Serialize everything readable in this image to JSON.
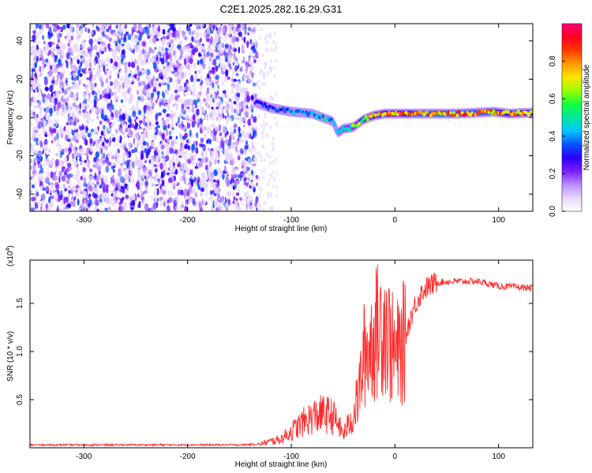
{
  "figure": {
    "title": "C2E1.2025.282.16.29.G31"
  },
  "chart_data": [
    {
      "type": "heatmap",
      "title": "C2E1.2025.282.16.29.G31",
      "xlabel": "Height of straight line (km)",
      "ylabel": "Frequency (Hz)",
      "xlim": [
        -352,
        133
      ],
      "ylim": [
        -49,
        49
      ],
      "x_ticks": [
        -300,
        -200,
        -100,
        0,
        100
      ],
      "y_ticks": [
        -40,
        -20,
        0,
        20,
        40
      ],
      "colorbar": {
        "label": "Normalized spectral amplitude",
        "range": [
          0.0,
          1.0
        ],
        "ticks": [
          "0.0",
          "0.2",
          "0.4",
          "0.6",
          "0.8"
        ],
        "tick_values": [
          0.0,
          0.2,
          0.4,
          0.6,
          0.8
        ],
        "colors": [
          "#ffffff",
          "#e8d6ff",
          "#b98cff",
          "#7a1cff",
          "#2a00ff",
          "#0a55ff",
          "#00c8ff",
          "#00e6a0",
          "#14ff3c",
          "#9aff00",
          "#ffe600",
          "#ff9a00",
          "#ff3a00",
          "#ff0020",
          "#ff007a"
        ]
      },
      "signal_track": {
        "x": [
          -135,
          -120,
          -100,
          -80,
          -70,
          -60,
          -55,
          -50,
          -40,
          -30,
          -20,
          -10,
          0,
          20,
          40,
          60,
          80,
          95,
          110,
          133
        ],
        "y": [
          8,
          5,
          3,
          2,
          0,
          -2,
          -8,
          -6,
          -5,
          -1,
          1,
          2,
          2,
          2,
          2,
          2,
          2.5,
          3,
          2,
          2.5
        ],
        "amplitude": [
          0.3,
          0.4,
          0.45,
          0.5,
          0.5,
          0.45,
          0.5,
          0.55,
          0.65,
          0.75,
          0.85,
          0.9,
          0.9,
          0.92,
          0.92,
          0.95,
          0.95,
          0.92,
          0.9,
          0.75
        ]
      },
      "noise_region_x": [
        -352,
        -133
      ]
    },
    {
      "type": "line",
      "xlabel": "Height of straight line (km)",
      "ylabel": "SNR (10 * v/v)",
      "yscale_label": "(x10",
      "yscale_exp": "4",
      "yscale_close": ")",
      "xlim": [
        -352,
        133
      ],
      "ylim": [
        0,
        1.95
      ],
      "x_ticks": [
        -300,
        -200,
        -100,
        0,
        100
      ],
      "y_ticks": [
        0.5,
        1.0,
        1.5
      ],
      "y_tick_labels": [
        "0.5",
        "1.0",
        "1.5"
      ],
      "color": "#ff2a2a",
      "series": [
        {
          "x": [
            -352,
            -300,
            -200,
            -150,
            -130,
            -110,
            -100,
            -90,
            -80,
            -70,
            -60,
            -55,
            -50,
            -40,
            -35,
            -30,
            -25,
            -20,
            -15,
            -10,
            -5,
            0,
            5,
            10,
            15,
            20,
            25,
            30,
            40,
            60,
            80,
            100,
            133
          ],
          "y": [
            0.03,
            0.03,
            0.03,
            0.03,
            0.04,
            0.09,
            0.17,
            0.25,
            0.32,
            0.35,
            0.33,
            0.25,
            0.14,
            0.33,
            0.55,
            0.95,
            1.05,
            1.15,
            1.25,
            1.35,
            1.1,
            0.95,
            1.0,
            1.15,
            1.35,
            1.5,
            1.6,
            1.66,
            1.72,
            1.73,
            1.73,
            1.68,
            1.66
          ]
        }
      ]
    }
  ]
}
